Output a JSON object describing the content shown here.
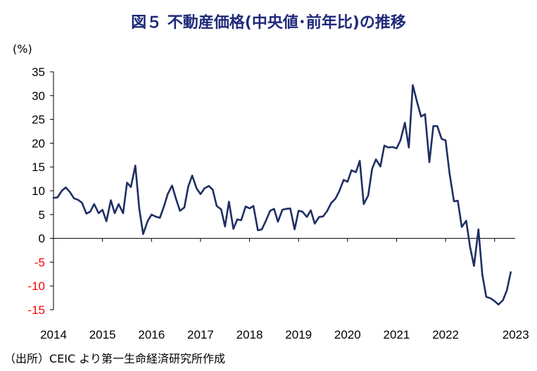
{
  "title": "図５ 不動産価格(中央値･前年比)の推移",
  "unit_label": "(%)",
  "source": "（出所）CEIC より第一生命経済研究所作成",
  "colors": {
    "line": "#1f2f63",
    "negative_tick": "#ff0000",
    "positive_tick": "#000000",
    "title": "#1f2a7a",
    "axis": "#000000"
  },
  "chart_data": {
    "type": "line",
    "title": "図５ 不動産価格(中央値･前年比)の推移",
    "xlabel": "",
    "ylabel": "(%)",
    "ylim": [
      -15,
      35
    ],
    "yticks": [
      35,
      30,
      25,
      20,
      15,
      10,
      5,
      0,
      -5,
      -10,
      -15
    ],
    "xlim": [
      2014.0,
      2023.42
    ],
    "xticks": [
      "2014",
      "2015",
      "2016",
      "2017",
      "2018",
      "2019",
      "2020",
      "2021",
      "2022",
      "2023"
    ],
    "grid": false,
    "legend": "none",
    "series": [
      {
        "x": [
          2014.0,
          2014.08,
          2014.17,
          2014.25,
          2014.33,
          2014.42,
          2014.5,
          2014.58,
          2014.67,
          2014.75,
          2014.83,
          2014.92,
          2015.0,
          2015.08,
          2015.17,
          2015.25,
          2015.33,
          2015.42,
          2015.5,
          2015.58,
          2015.67,
          2015.75,
          2015.83,
          2015.92,
          2016.0,
          2016.08,
          2016.17,
          2016.25,
          2016.33,
          2016.42,
          2016.5,
          2016.58,
          2016.67,
          2016.75,
          2016.83,
          2016.92,
          2017.0,
          2017.08,
          2017.17,
          2017.25,
          2017.33,
          2017.42,
          2017.5,
          2017.58,
          2017.67,
          2017.75,
          2017.83,
          2017.92,
          2018.0,
          2018.08,
          2018.17,
          2018.25,
          2018.33,
          2018.42,
          2018.5,
          2018.58,
          2018.67,
          2018.75,
          2018.83,
          2018.92,
          2019.0,
          2019.08,
          2019.17,
          2019.25,
          2019.33,
          2019.42,
          2019.5,
          2019.58,
          2019.67,
          2019.75,
          2019.83,
          2019.92,
          2020.0,
          2020.08,
          2020.17,
          2020.25,
          2020.33,
          2020.42,
          2020.5,
          2020.58,
          2020.67,
          2020.75,
          2020.83,
          2020.92,
          2021.0,
          2021.08,
          2021.17,
          2021.25,
          2021.33,
          2021.42,
          2021.5,
          2021.58,
          2021.67,
          2021.75,
          2021.83,
          2021.92,
          2022.0,
          2022.08,
          2022.17,
          2022.25,
          2022.33,
          2022.42,
          2022.5,
          2022.58,
          2022.67,
          2022.75,
          2022.83,
          2022.92,
          2023.0,
          2023.08,
          2023.17,
          2023.25,
          2023.33
        ],
        "values": [
          8.5,
          8.6,
          10.0,
          10.7,
          9.8,
          8.4,
          8.1,
          7.5,
          5.2,
          5.6,
          7.2,
          5.3,
          6.0,
          3.6,
          8.0,
          5.3,
          7.2,
          5.3,
          11.7,
          10.8,
          15.3,
          6.2,
          0.9,
          3.6,
          5.0,
          4.6,
          4.3,
          6.6,
          9.3,
          11.1,
          8.3,
          5.8,
          6.5,
          10.9,
          13.2,
          10.5,
          9.3,
          10.5,
          11.0,
          10.2,
          6.8,
          6.1,
          2.5,
          7.7,
          2.0,
          4.0,
          3.8,
          6.7,
          6.3,
          6.8,
          1.7,
          1.9,
          3.6,
          5.8,
          6.2,
          3.5,
          6.0,
          6.2,
          6.3,
          1.9,
          5.8,
          5.6,
          4.5,
          5.9,
          3.1,
          4.5,
          4.6,
          5.7,
          7.5,
          8.3,
          9.9,
          12.3,
          11.9,
          14.3,
          13.9,
          16.3,
          7.2,
          9.0,
          14.6,
          16.6,
          15.1,
          19.5,
          19.1,
          19.2,
          18.9,
          20.6,
          24.3,
          19.1,
          32.2,
          28.6,
          25.6,
          26.1,
          16.0,
          23.6,
          23.6,
          20.9,
          20.6,
          13.7,
          7.8,
          7.9,
          2.4,
          3.7,
          -1.8,
          -5.8,
          1.9,
          -7.6,
          -12.3,
          -12.6,
          -13.2,
          -13.9,
          -13.0,
          -10.9,
          -7.1
        ]
      }
    ]
  }
}
